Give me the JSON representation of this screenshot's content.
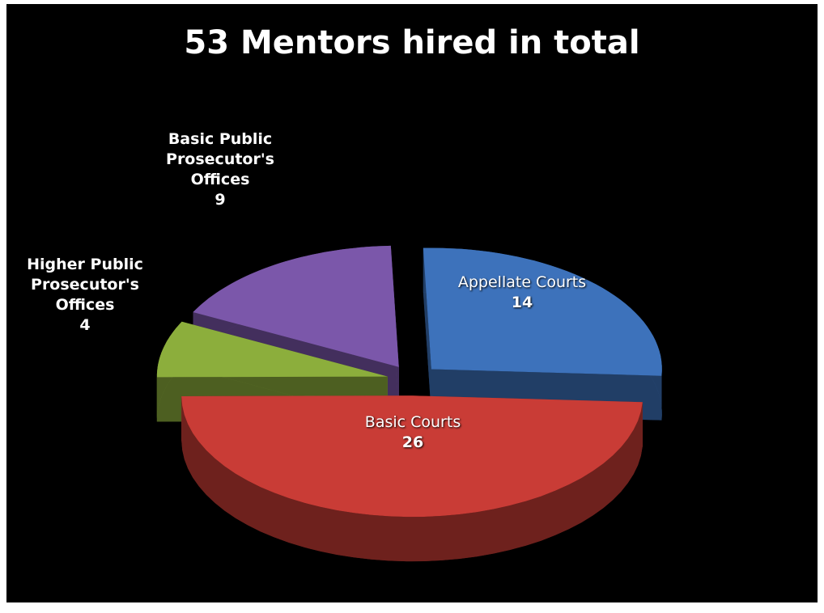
{
  "chart_data": {
    "type": "pie",
    "title": "53 Mentors hired in total",
    "categories": [
      "Appellate Courts",
      "Basic Courts",
      "Higher Public Prosecutor's Offices",
      "Basic Public Prosecutor's Offices"
    ],
    "values": [
      14,
      26,
      4,
      9
    ],
    "colors": [
      "#3d72bb",
      "#c93c36",
      "#8cae3c",
      "#7b57aa"
    ]
  }
}
